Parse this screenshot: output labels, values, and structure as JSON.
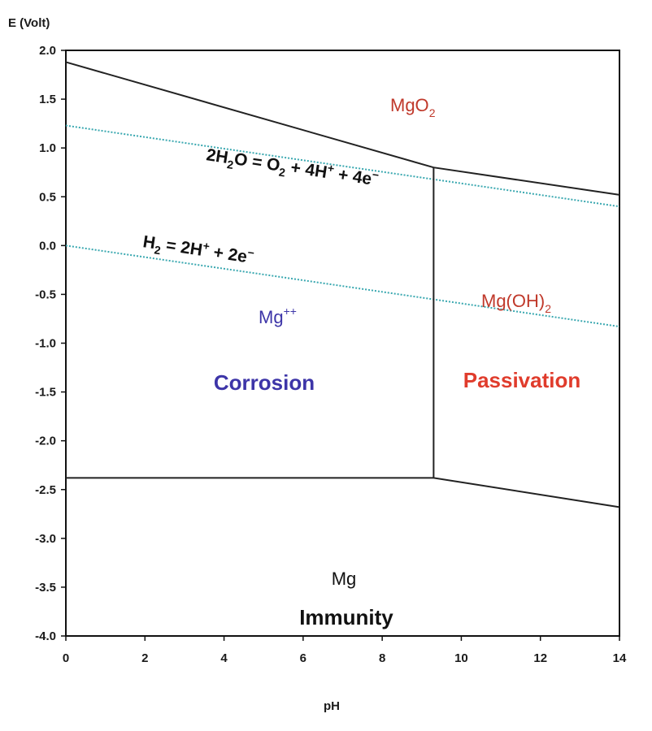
{
  "chart_data": {
    "type": "line",
    "ylabel": "E (Volt)",
    "xlabel": "pH",
    "xlim": [
      0,
      14
    ],
    "ylim": [
      -4.0,
      2.0
    ],
    "x_ticks": [
      0,
      2,
      4,
      6,
      8,
      10,
      12,
      14
    ],
    "x_tick_labels": [
      "0",
      "2",
      "4",
      "6",
      "8",
      "10",
      "12",
      "14"
    ],
    "y_ticks": [
      2.0,
      1.5,
      1.0,
      0.5,
      0.0,
      -0.5,
      -1.0,
      -1.5,
      -2.0,
      -2.5,
      -3.0,
      -3.5,
      -4.0
    ],
    "y_tick_labels": [
      "2.0",
      "1.5",
      "1.0",
      "0.5",
      "0.0",
      "-0.5",
      "-1.0",
      "-1.5",
      "-2.0",
      "-2.5",
      "-3.0",
      "-3.5",
      "-4.0"
    ],
    "grid": false,
    "boundaries": [
      {
        "style": "solid",
        "points": [
          [
            0,
            1.88
          ],
          [
            9.3,
            0.8
          ],
          [
            14,
            0.52
          ]
        ]
      },
      {
        "style": "solid",
        "points": [
          [
            9.3,
            0.8
          ],
          [
            9.3,
            -2.38
          ]
        ]
      },
      {
        "style": "solid",
        "points": [
          [
            0,
            -2.38
          ],
          [
            9.3,
            -2.38
          ],
          [
            14,
            -2.68
          ]
        ]
      }
    ],
    "water_lines": [
      {
        "style": "dotted",
        "color": "#3aa8b0",
        "points": [
          [
            0,
            1.23
          ],
          [
            14,
            0.4
          ]
        ]
      },
      {
        "style": "dotted",
        "color": "#3aa8b0",
        "points": [
          [
            0,
            0.0
          ],
          [
            14,
            -0.83
          ]
        ]
      }
    ],
    "annotations": {
      "mgo2": {
        "base": "MgO",
        "sub": "2",
        "color": "#c0392b"
      },
      "mgoh2": {
        "base": "Mg(OH)",
        "sub": "2",
        "color": "#c0392b"
      },
      "mg_ion": {
        "base": "Mg",
        "sup": "++",
        "color": "#3d35a8"
      },
      "corrosion": {
        "text": "Corrosion",
        "color": "#3d35a8"
      },
      "passivation": {
        "text": "Passivation",
        "color": "#e03c2c"
      },
      "mg": {
        "text": "Mg",
        "color": "#111111"
      },
      "immunity": {
        "text": "Immunity",
        "color": "#111111"
      },
      "o2_reaction": {
        "parts": [
          "2H",
          "2",
          "O = O",
          "2",
          " + 4H",
          "+",
          " + 4e",
          "−"
        ]
      },
      "h2_reaction": {
        "parts": [
          "H",
          "2",
          " = 2H",
          "+",
          " + 2e",
          "−"
        ]
      }
    }
  }
}
